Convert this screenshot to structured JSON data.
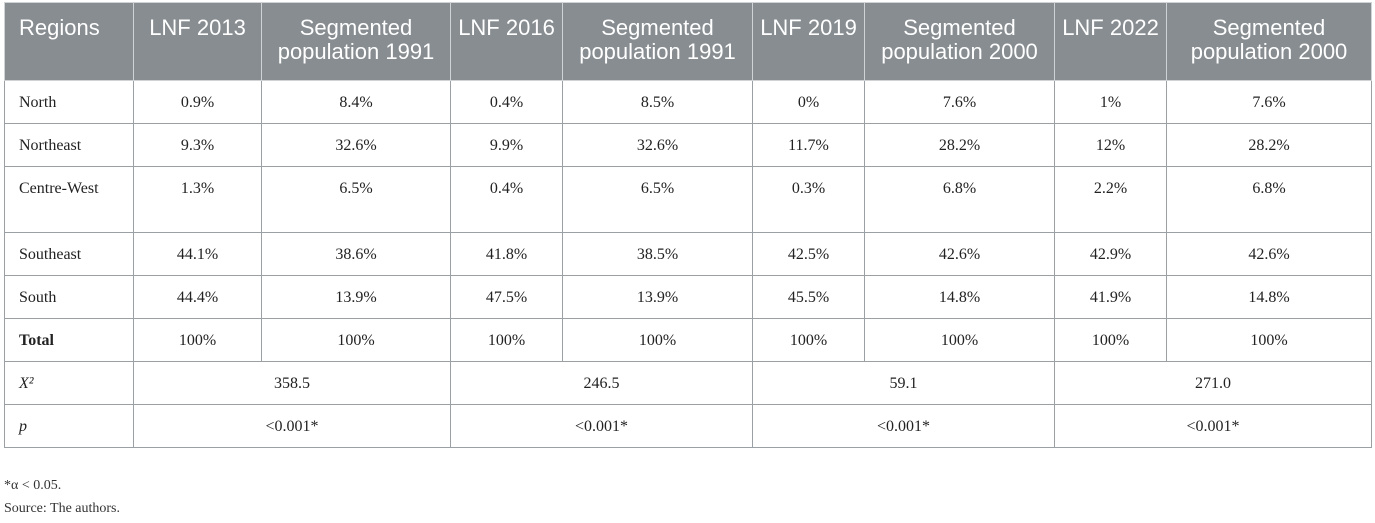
{
  "table": {
    "headers": [
      "Regions",
      "LNF 2013",
      "Segmented population 1991",
      "LNF 2016",
      "Segmented population 1991",
      "LNF 2019",
      "Segmented population 2000",
      "LNF 2022",
      "Segmented population 2000"
    ],
    "rows": [
      {
        "region": "North",
        "values": [
          "0.9%",
          "8.4%",
          "0.4%",
          "8.5%",
          "0%",
          "7.6%",
          "1%",
          "7.6%"
        ]
      },
      {
        "region": "Northeast",
        "values": [
          "9.3%",
          "32.6%",
          "9.9%",
          "32.6%",
          "11.7%",
          "28.2%",
          "12%",
          "28.2%"
        ]
      },
      {
        "region": "Centre-West",
        "values": [
          "1.3%",
          "6.5%",
          "0.4%",
          "6.5%",
          "0.3%",
          "6.8%",
          "2.2%",
          "6.8%"
        ]
      },
      {
        "region": "Southeast",
        "values": [
          "44.1%",
          "38.6%",
          "41.8%",
          "38.5%",
          "42.5%",
          "42.6%",
          "42.9%",
          "42.6%"
        ]
      },
      {
        "region": "South",
        "values": [
          "44.4%",
          "13.9%",
          "47.5%",
          "13.9%",
          "45.5%",
          "14.8%",
          "41.9%",
          "14.8%"
        ]
      },
      {
        "region": "Total",
        "values": [
          "100%",
          "100%",
          "100%",
          "100%",
          "100%",
          "100%",
          "100%",
          "100%"
        ]
      }
    ],
    "chi_square": {
      "label": "X²",
      "values": [
        "358.5",
        "246.5",
        "59.1",
        "271.0"
      ]
    },
    "p_value": {
      "label": "p",
      "values": [
        "<0.001*",
        "<0.001*",
        "<0.001*",
        "<0.001*"
      ]
    }
  },
  "footnotes": {
    "significance": "*α < 0.05.",
    "source": "Source: The authors."
  }
}
